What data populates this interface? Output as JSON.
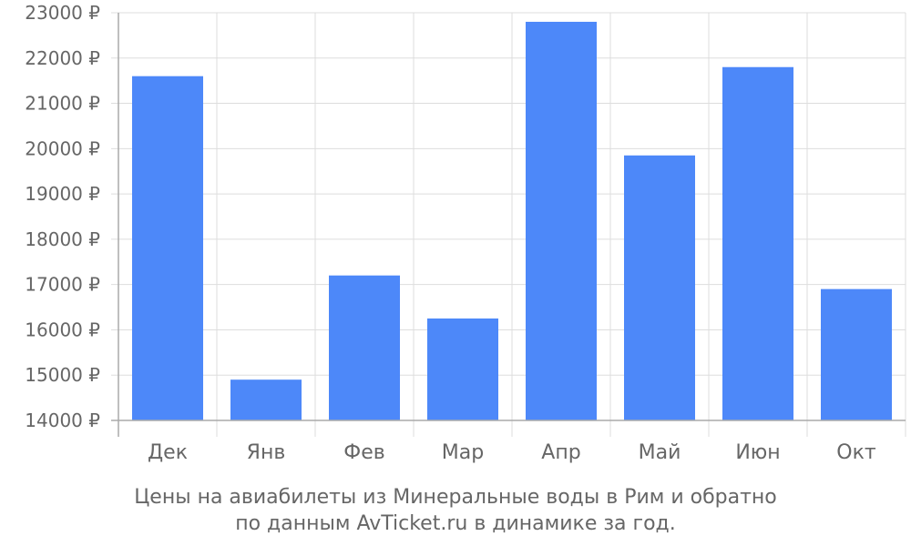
{
  "caption": {
    "line1": "Цены на авиабилеты из Минеральные воды в Рим и обратно",
    "line2": "по данным AvTicket.ru в динамике за год."
  },
  "chart_data": {
    "type": "bar",
    "categories": [
      "Дек",
      "Янв",
      "Фев",
      "Мар",
      "Апр",
      "Май",
      "Июн",
      "Окт"
    ],
    "values": [
      21600,
      14900,
      17200,
      16250,
      22800,
      19850,
      21800,
      16900
    ],
    "y_ticks": [
      "14000 ₽",
      "15000 ₽",
      "16000 ₽",
      "17000 ₽",
      "18000 ₽",
      "19000 ₽",
      "20000 ₽",
      "21000 ₽",
      "22000 ₽",
      "23000 ₽"
    ],
    "ylim": [
      14000,
      23000
    ],
    "grid": true,
    "colors": {
      "bar": "#4d88f9",
      "grid": "#dddddd",
      "axis": "#aaaaaa",
      "text": "#666666"
    }
  }
}
